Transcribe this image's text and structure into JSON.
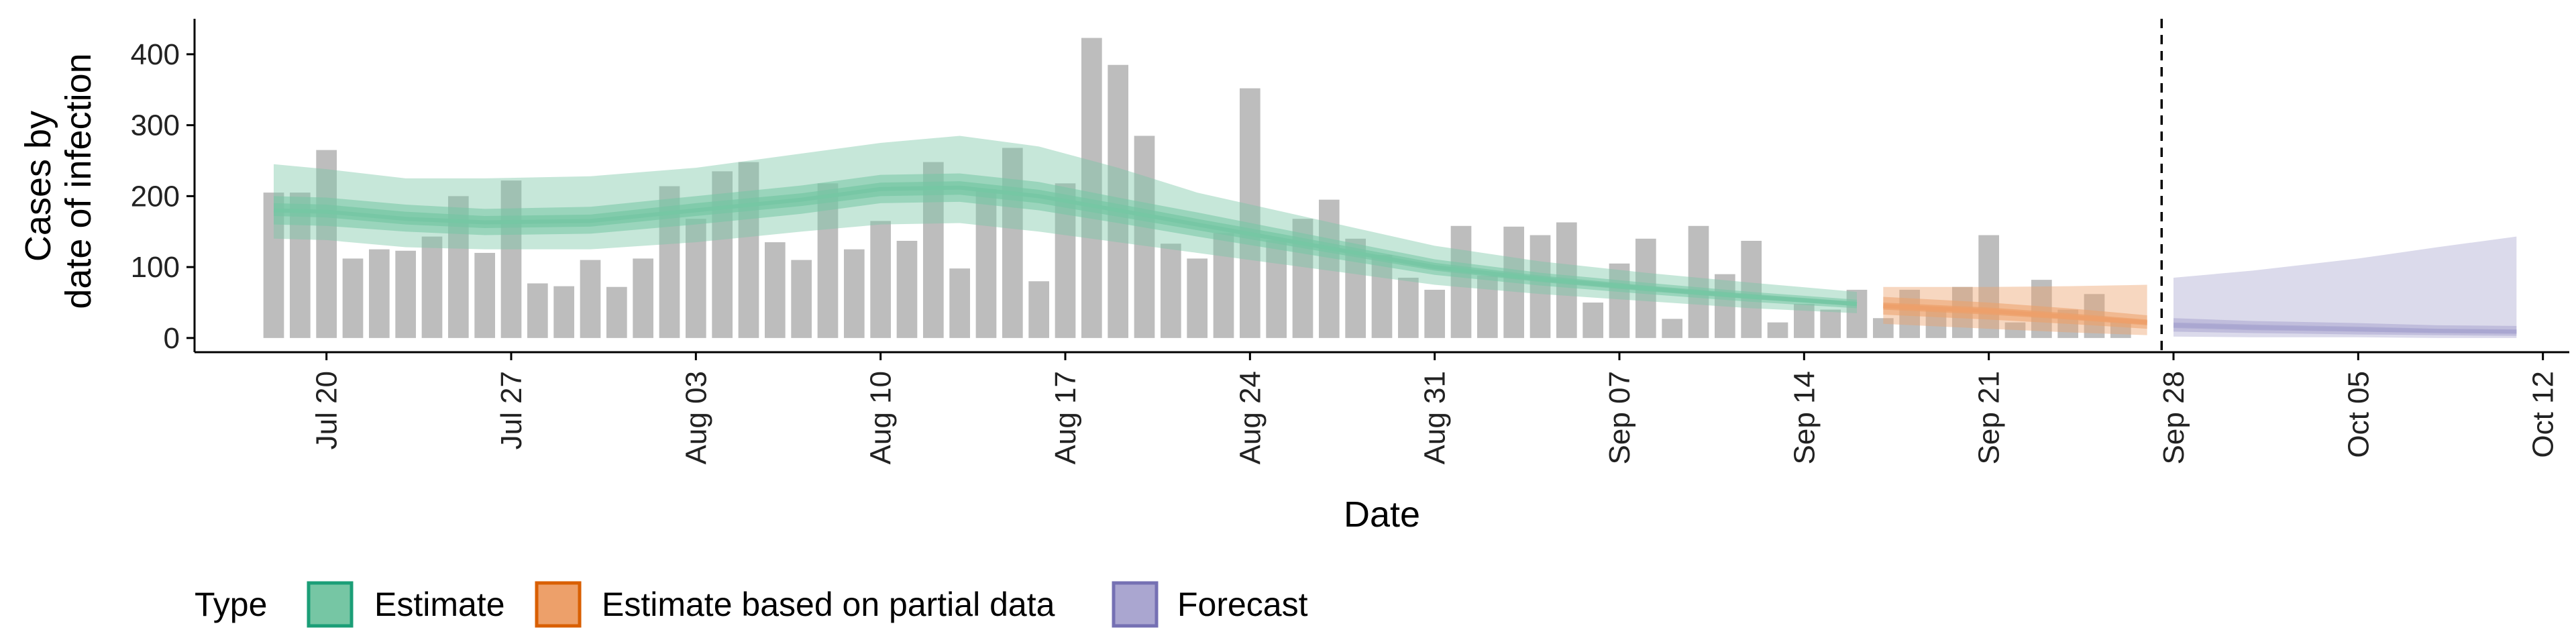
{
  "chart_data": {
    "type": "bar",
    "xlabel": "Date",
    "ylabel_lines": [
      "Cases by",
      "date of infection"
    ],
    "x_range": [
      "2020-07-15",
      "2020-10-13"
    ],
    "y_range": [
      -20,
      450
    ],
    "y_ticks": [
      0,
      100,
      200,
      300,
      400
    ],
    "x_ticks": [
      {
        "date": "2020-07-20",
        "label": "Jul 20"
      },
      {
        "date": "2020-07-27",
        "label": "Jul 27"
      },
      {
        "date": "2020-08-03",
        "label": "Aug 03"
      },
      {
        "date": "2020-08-10",
        "label": "Aug 10"
      },
      {
        "date": "2020-08-17",
        "label": "Aug 17"
      },
      {
        "date": "2020-08-24",
        "label": "Aug 24"
      },
      {
        "date": "2020-08-31",
        "label": "Aug 31"
      },
      {
        "date": "2020-09-07",
        "label": "Sep 07"
      },
      {
        "date": "2020-09-14",
        "label": "Sep 14"
      },
      {
        "date": "2020-09-21",
        "label": "Sep 21"
      },
      {
        "date": "2020-09-28",
        "label": "Sep 28"
      },
      {
        "date": "2020-10-05",
        "label": "Oct 05"
      },
      {
        "date": "2020-10-12",
        "label": "Oct 12"
      }
    ],
    "vline_date": "2020-09-27",
    "bars": {
      "start_date": "2020-07-18",
      "color": "#bdbdbd",
      "values": [
        205,
        205,
        265,
        112,
        125,
        123,
        143,
        200,
        120,
        222,
        77,
        73,
        110,
        72,
        112,
        214,
        168,
        235,
        248,
        135,
        110,
        218,
        125,
        165,
        137,
        248,
        98,
        210,
        268,
        80,
        218,
        423,
        385,
        285,
        133,
        112,
        148,
        352,
        138,
        168,
        195,
        140,
        117,
        85,
        68,
        158,
        88,
        157,
        145,
        163,
        50,
        105,
        140,
        27,
        158,
        90,
        137,
        22,
        48,
        40,
        68,
        28,
        68,
        40,
        72,
        145,
        22,
        82,
        40,
        62,
        25
      ]
    },
    "series": [
      {
        "name": "Estimate",
        "color": "#1b9e77",
        "fill": "#76c6a4",
        "points": [
          {
            "date": "2020-07-18",
            "median": 180,
            "lo20": 172,
            "hi20": 190,
            "lo50": 160,
            "hi50": 200,
            "lo90": 140,
            "hi90": 245
          },
          {
            "date": "2020-07-20",
            "median": 178,
            "lo20": 170,
            "hi20": 188,
            "lo50": 158,
            "hi50": 198,
            "lo90": 138,
            "hi90": 238
          },
          {
            "date": "2020-07-23",
            "median": 168,
            "lo20": 160,
            "hi20": 178,
            "lo50": 150,
            "hi50": 188,
            "lo90": 128,
            "hi90": 225
          },
          {
            "date": "2020-07-26",
            "median": 163,
            "lo20": 155,
            "hi20": 172,
            "lo50": 145,
            "hi50": 182,
            "lo90": 125,
            "hi90": 225
          },
          {
            "date": "2020-07-30",
            "median": 165,
            "lo20": 157,
            "hi20": 174,
            "lo50": 147,
            "hi50": 185,
            "lo90": 125,
            "hi90": 228
          },
          {
            "date": "2020-08-03",
            "median": 180,
            "lo20": 172,
            "hi20": 190,
            "lo50": 160,
            "hi50": 200,
            "lo90": 135,
            "hi90": 240
          },
          {
            "date": "2020-08-07",
            "median": 195,
            "lo20": 186,
            "hi20": 204,
            "lo50": 175,
            "hi50": 215,
            "lo90": 150,
            "hi90": 260
          },
          {
            "date": "2020-08-10",
            "median": 210,
            "lo20": 200,
            "hi20": 219,
            "lo50": 190,
            "hi50": 230,
            "lo90": 160,
            "hi90": 275
          },
          {
            "date": "2020-08-13",
            "median": 212,
            "lo20": 202,
            "hi20": 221,
            "lo50": 192,
            "hi50": 232,
            "lo90": 162,
            "hi90": 285
          },
          {
            "date": "2020-08-16",
            "median": 200,
            "lo20": 190,
            "hi20": 209,
            "lo50": 180,
            "hi50": 220,
            "lo90": 150,
            "hi90": 270
          },
          {
            "date": "2020-08-19",
            "median": 180,
            "lo20": 171,
            "hi20": 189,
            "lo50": 162,
            "hi50": 198,
            "lo90": 135,
            "hi90": 240
          },
          {
            "date": "2020-08-22",
            "median": 160,
            "lo20": 152,
            "hi20": 168,
            "lo50": 143,
            "hi50": 177,
            "lo90": 120,
            "hi90": 205
          },
          {
            "date": "2020-08-25",
            "median": 140,
            "lo20": 133,
            "hi20": 148,
            "lo50": 125,
            "hi50": 155,
            "lo90": 105,
            "hi90": 180
          },
          {
            "date": "2020-08-28",
            "median": 120,
            "lo20": 114,
            "hi20": 127,
            "lo50": 107,
            "hi50": 133,
            "lo90": 90,
            "hi90": 155
          },
          {
            "date": "2020-08-31",
            "median": 100,
            "lo20": 95,
            "hi20": 106,
            "lo50": 89,
            "hi50": 111,
            "lo90": 75,
            "hi90": 130
          },
          {
            "date": "2020-09-04",
            "median": 83,
            "lo20": 79,
            "hi20": 88,
            "lo50": 74,
            "hi50": 92,
            "lo90": 62,
            "hi90": 108
          },
          {
            "date": "2020-09-08",
            "median": 70,
            "lo20": 66,
            "hi20": 74,
            "lo50": 62,
            "hi50": 78,
            "lo90": 52,
            "hi90": 92
          },
          {
            "date": "2020-09-12",
            "median": 58,
            "lo20": 55,
            "hi20": 62,
            "lo50": 51,
            "hi50": 65,
            "lo90": 42,
            "hi90": 78
          },
          {
            "date": "2020-09-16",
            "median": 48,
            "lo20": 45,
            "hi20": 51,
            "lo50": 42,
            "hi50": 54,
            "lo90": 35,
            "hi90": 65
          }
        ]
      },
      {
        "name": "Estimate based on partial data",
        "color": "#d95f02",
        "fill": "#eda06a",
        "points": [
          {
            "date": "2020-09-17",
            "median": 45,
            "lo20": 40,
            "hi20": 50,
            "lo50": 33,
            "hi50": 58,
            "lo90": 20,
            "hi90": 72
          },
          {
            "date": "2020-09-21",
            "median": 38,
            "lo20": 33,
            "hi20": 43,
            "lo50": 26,
            "hi50": 50,
            "lo90": 13,
            "hi90": 72
          },
          {
            "date": "2020-09-24",
            "median": 30,
            "lo20": 26,
            "hi20": 35,
            "lo50": 20,
            "hi50": 42,
            "lo90": 8,
            "hi90": 73
          },
          {
            "date": "2020-09-27",
            "median": 22,
            "lo20": 18,
            "hi20": 26,
            "lo50": 13,
            "hi50": 32,
            "lo90": 4,
            "hi90": 75
          }
        ]
      },
      {
        "name": "Forecast",
        "color": "#7570b3",
        "fill": "#aaa6d0",
        "points": [
          {
            "date": "2020-09-28",
            "median": 18,
            "lo20": 14,
            "hi20": 22,
            "lo50": 9,
            "hi50": 28,
            "lo90": 2,
            "hi90": 85
          },
          {
            "date": "2020-10-01",
            "median": 15,
            "lo20": 11,
            "hi20": 19,
            "lo50": 7,
            "hi50": 24,
            "lo90": 1,
            "hi90": 95
          },
          {
            "date": "2020-10-05",
            "median": 12,
            "lo20": 9,
            "hi20": 16,
            "lo50": 5,
            "hi50": 21,
            "lo90": 1,
            "hi90": 112
          },
          {
            "date": "2020-10-08",
            "median": 10,
            "lo20": 7,
            "hi20": 13,
            "lo50": 4,
            "hi50": 18,
            "lo90": 0,
            "hi90": 128
          },
          {
            "date": "2020-10-11",
            "median": 9,
            "lo20": 6,
            "hi20": 12,
            "lo50": 3,
            "hi50": 17,
            "lo90": 0,
            "hi90": 143
          }
        ]
      }
    ],
    "legend": {
      "title": "Type",
      "position": "bottom",
      "items": [
        {
          "label": "Estimate",
          "fill": "#76c6a4",
          "stroke": "#1b9e77"
        },
        {
          "label": "Estimate based on partial data",
          "fill": "#eda06a",
          "stroke": "#d95f02"
        },
        {
          "label": "Forecast",
          "fill": "#aaa6d0",
          "stroke": "#7570b3"
        }
      ]
    }
  }
}
